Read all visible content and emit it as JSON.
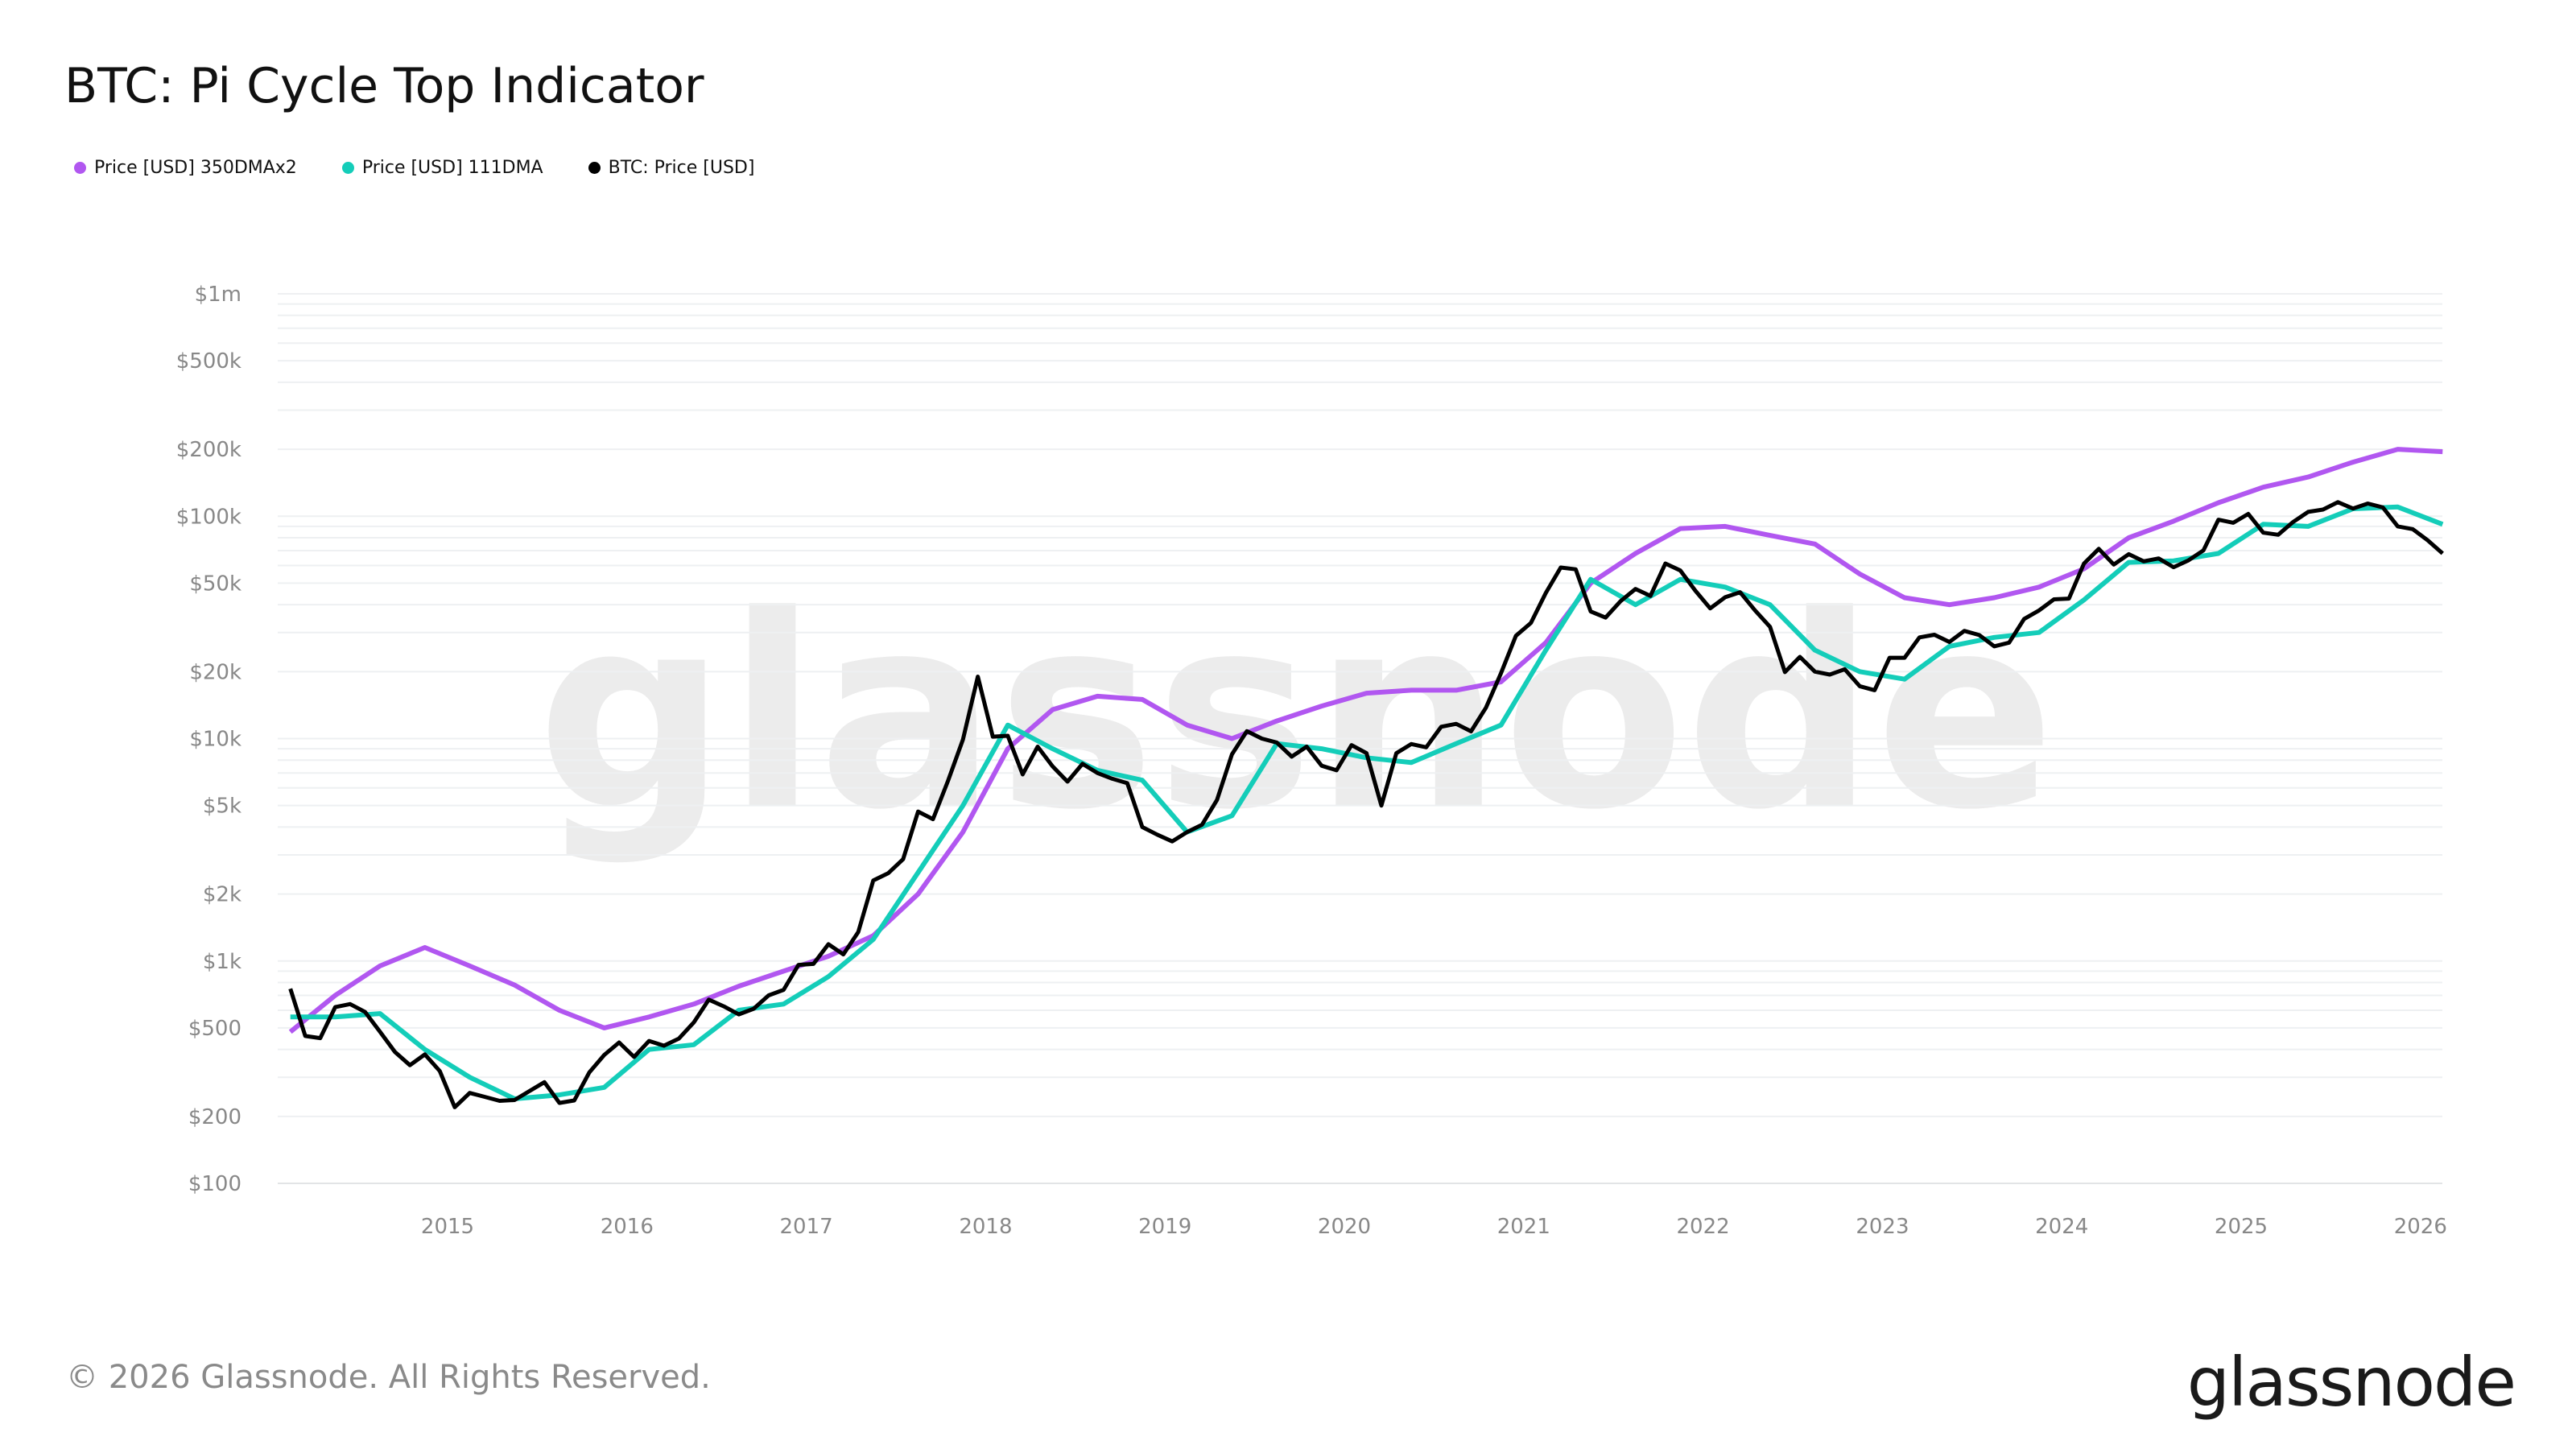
{
  "title": "BTC: Pi Cycle Top Indicator",
  "footer": "© 2026 Glassnode. All Rights Reserved.",
  "logo": "glassnode",
  "watermark": "glassnode",
  "chart_data": {
    "type": "line",
    "title": "BTC: Pi Cycle Top Indicator",
    "y_scale": "log",
    "ylim": [
      100,
      1000000
    ],
    "xlim": [
      "2014-02",
      "2026-02"
    ],
    "grid": true,
    "legend_position": "top-left",
    "y_ticks": [
      {
        "v": 1000000,
        "label": "$1m"
      },
      {
        "v": 500000,
        "label": "$500k"
      },
      {
        "v": 200000,
        "label": "$200k"
      },
      {
        "v": 100000,
        "label": "$100k"
      },
      {
        "v": 50000,
        "label": "$50k"
      },
      {
        "v": 20000,
        "label": "$20k"
      },
      {
        "v": 10000,
        "label": "$10k"
      },
      {
        "v": 5000,
        "label": "$5k"
      },
      {
        "v": 2000,
        "label": "$2k"
      },
      {
        "v": 1000,
        "label": "$1k"
      },
      {
        "v": 500,
        "label": "$500"
      },
      {
        "v": 200,
        "label": "$200"
      },
      {
        "v": 100,
        "label": "$100"
      }
    ],
    "x_ticks": [
      "2015",
      "2016",
      "2017",
      "2018",
      "2019",
      "2020",
      "2021",
      "2022",
      "2023",
      "2024",
      "2025",
      "2026"
    ],
    "series": [
      {
        "name": "Price [USD] 350DMAx2",
        "color": "#b157f0",
        "x": [
          "2014-02",
          "2014-05",
          "2014-08",
          "2014-11",
          "2015-02",
          "2015-05",
          "2015-08",
          "2015-11",
          "2016-02",
          "2016-05",
          "2016-08",
          "2016-11",
          "2017-02",
          "2017-05",
          "2017-08",
          "2017-11",
          "2018-02",
          "2018-05",
          "2018-08",
          "2018-11",
          "2019-02",
          "2019-05",
          "2019-08",
          "2019-11",
          "2020-02",
          "2020-05",
          "2020-08",
          "2020-11",
          "2021-02",
          "2021-05",
          "2021-08",
          "2021-11",
          "2022-02",
          "2022-05",
          "2022-08",
          "2022-11",
          "2023-02",
          "2023-05",
          "2023-08",
          "2023-11",
          "2024-02",
          "2024-05",
          "2024-08",
          "2024-11",
          "2025-02",
          "2025-05",
          "2025-08",
          "2025-11",
          "2026-02"
        ],
        "values": [
          480,
          700,
          950,
          1150,
          950,
          780,
          600,
          500,
          560,
          640,
          770,
          900,
          1050,
          1300,
          2000,
          3800,
          9000,
          13500,
          15500,
          15000,
          11500,
          10000,
          12000,
          14000,
          16000,
          16500,
          16500,
          18000,
          27000,
          50000,
          68000,
          88000,
          90000,
          82000,
          75000,
          55000,
          43000,
          40000,
          43000,
          48000,
          58000,
          80000,
          95000,
          115000,
          135000,
          150000,
          175000,
          200000,
          195000
        ]
      },
      {
        "name": "Price [USD] 111DMA",
        "color": "#14cdb9",
        "x": [
          "2014-02",
          "2014-05",
          "2014-08",
          "2014-11",
          "2015-02",
          "2015-05",
          "2015-08",
          "2015-11",
          "2016-02",
          "2016-05",
          "2016-08",
          "2016-11",
          "2017-02",
          "2017-05",
          "2017-08",
          "2017-11",
          "2018-02",
          "2018-05",
          "2018-08",
          "2018-11",
          "2019-02",
          "2019-05",
          "2019-08",
          "2019-11",
          "2020-02",
          "2020-05",
          "2020-08",
          "2020-11",
          "2021-02",
          "2021-05",
          "2021-08",
          "2021-11",
          "2022-02",
          "2022-05",
          "2022-08",
          "2022-11",
          "2023-02",
          "2023-05",
          "2023-08",
          "2023-11",
          "2024-02",
          "2024-05",
          "2024-08",
          "2024-11",
          "2025-02",
          "2025-05",
          "2025-08",
          "2025-11",
          "2026-02"
        ],
        "values": [
          560,
          560,
          580,
          400,
          300,
          240,
          250,
          270,
          400,
          420,
          600,
          640,
          850,
          1250,
          2500,
          5000,
          11500,
          9000,
          7200,
          6500,
          3800,
          4500,
          9500,
          9000,
          8200,
          7800,
          9500,
          11500,
          25000,
          52000,
          40000,
          52000,
          48000,
          40000,
          25000,
          20000,
          18500,
          26000,
          28500,
          30000,
          42000,
          62000,
          63000,
          68000,
          92000,
          90000,
          108000,
          110000,
          92000
        ]
      },
      {
        "name": "BTC: Price [USD]",
        "color": "#000000",
        "x": [
          "2014-02",
          "2014-03",
          "2014-04",
          "2014-05",
          "2014-06",
          "2014-07",
          "2014-08",
          "2014-09",
          "2014-10",
          "2014-11",
          "2014-12",
          "2015-01",
          "2015-02",
          "2015-03",
          "2015-04",
          "2015-05",
          "2015-06",
          "2015-07",
          "2015-08",
          "2015-09",
          "2015-10",
          "2015-11",
          "2015-12",
          "2016-01",
          "2016-02",
          "2016-03",
          "2016-04",
          "2016-05",
          "2016-06",
          "2016-07",
          "2016-08",
          "2016-09",
          "2016-10",
          "2016-11",
          "2016-12",
          "2017-01",
          "2017-02",
          "2017-03",
          "2017-04",
          "2017-05",
          "2017-06",
          "2017-07",
          "2017-08",
          "2017-09",
          "2017-10",
          "2017-11",
          "2017-12",
          "2018-01",
          "2018-02",
          "2018-03",
          "2018-04",
          "2018-05",
          "2018-06",
          "2018-07",
          "2018-08",
          "2018-09",
          "2018-10",
          "2018-11",
          "2018-12",
          "2019-01",
          "2019-02",
          "2019-03",
          "2019-04",
          "2019-05",
          "2019-06",
          "2019-07",
          "2019-08",
          "2019-09",
          "2019-10",
          "2019-11",
          "2019-12",
          "2020-01",
          "2020-02",
          "2020-03",
          "2020-04",
          "2020-05",
          "2020-06",
          "2020-07",
          "2020-08",
          "2020-09",
          "2020-10",
          "2020-11",
          "2020-12",
          "2021-01",
          "2021-02",
          "2021-03",
          "2021-04",
          "2021-05",
          "2021-06",
          "2021-07",
          "2021-08",
          "2021-09",
          "2021-10",
          "2021-11",
          "2021-12",
          "2022-01",
          "2022-02",
          "2022-03",
          "2022-04",
          "2022-05",
          "2022-06",
          "2022-07",
          "2022-08",
          "2022-09",
          "2022-10",
          "2022-11",
          "2022-12",
          "2023-01",
          "2023-02",
          "2023-03",
          "2023-04",
          "2023-05",
          "2023-06",
          "2023-07",
          "2023-08",
          "2023-09",
          "2023-10",
          "2023-11",
          "2023-12",
          "2024-01",
          "2024-02",
          "2024-03",
          "2024-04",
          "2024-05",
          "2024-06",
          "2024-07",
          "2024-08",
          "2024-09",
          "2024-10",
          "2024-11",
          "2024-12",
          "2025-01",
          "2025-02",
          "2025-03",
          "2025-04",
          "2025-05",
          "2025-06",
          "2025-07",
          "2025-08",
          "2025-09",
          "2025-10",
          "2025-11",
          "2025-12",
          "2026-01",
          "2026-02"
        ],
        "values": [
          750,
          460,
          450,
          620,
          640,
          590,
          480,
          390,
          340,
          380,
          320,
          220,
          255,
          245,
          235,
          237,
          260,
          285,
          230,
          236,
          315,
          378,
          430,
          370,
          437,
          416,
          448,
          530,
          670,
          625,
          575,
          610,
          700,
          742,
          960,
          970,
          1190,
          1070,
          1350,
          2300,
          2480,
          2870,
          4700,
          4340,
          6450,
          9900,
          19000,
          10200,
          10300,
          6900,
          9200,
          7500,
          6400,
          7700,
          7000,
          6600,
          6300,
          4000,
          3700,
          3450,
          3800,
          4100,
          5300,
          8500,
          10800,
          10000,
          9600,
          8300,
          9200,
          7550,
          7200,
          9350,
          8600,
          5000,
          8600,
          9450,
          9140,
          11300,
          11650,
          10780,
          13800,
          19700,
          29000,
          33100,
          45200,
          58800,
          57700,
          37300,
          35000,
          41500,
          47100,
          43800,
          61300,
          57000,
          46300,
          38500,
          43200,
          45500,
          37700,
          31800,
          19900,
          23300,
          20000,
          19400,
          20500,
          17200,
          16500,
          23100,
          23100,
          28500,
          29300,
          27200,
          30500,
          29200,
          26000,
          27000,
          34500,
          37700,
          42300,
          42600,
          61200,
          71300,
          60600,
          67500,
          62700,
          64600,
          59000,
          63300,
          70200,
          96400,
          93400,
          102400,
          84300,
          82500,
          94200,
          104600,
          107100,
          115700,
          108300,
          114000,
          109600,
          90000,
          87500,
          78000,
          68000
        ]
      }
    ]
  }
}
